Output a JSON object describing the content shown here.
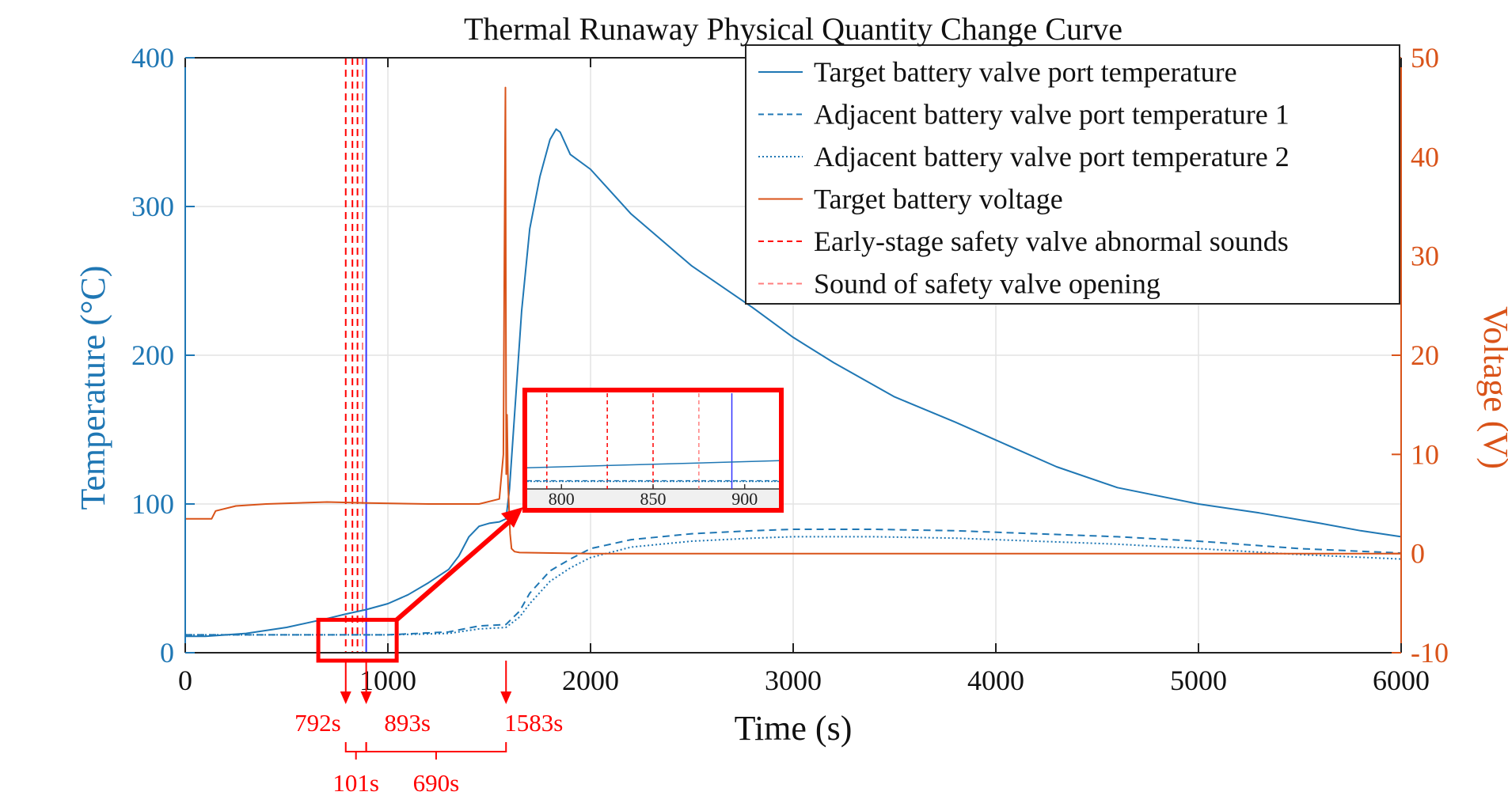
{
  "chart_data": {
    "type": "line",
    "title": "Thermal Runaway Physical Quantity Change Curve",
    "xlabel": "Time (s)",
    "ylabel_left": "Temperature (°C)",
    "ylabel_right": "Voltage (V)",
    "xlim": [
      0,
      6000
    ],
    "ylim_left": [
      0,
      400
    ],
    "ylim_right": [
      -10,
      50
    ],
    "x_ticks": [
      "0",
      "1000",
      "2000",
      "3000",
      "4000",
      "5000",
      "6000"
    ],
    "y_left_ticks": [
      "0",
      "100",
      "200",
      "300",
      "400"
    ],
    "y_right_ticks": [
      "-10",
      "0",
      "10",
      "20",
      "30",
      "40",
      "50"
    ],
    "grid": true,
    "legend_position": "top-right",
    "colors": {
      "temperature": "#1f77b4",
      "voltage": "#d95319",
      "early_sound": "#ff0000",
      "valve_open": "#ff7f7f",
      "marker_blue": "#3333ff",
      "annotation": "#ff0000"
    },
    "series": [
      {
        "name": "Target battery valve port temperature",
        "axis": "left",
        "style": "solid",
        "x": [
          0,
          100,
          300,
          500,
          700,
          792,
          893,
          1000,
          1100,
          1200,
          1300,
          1350,
          1400,
          1450,
          1500,
          1550,
          1583,
          1600,
          1630,
          1660,
          1700,
          1750,
          1800,
          1830,
          1850,
          1900,
          2000,
          2200,
          2500,
          2800,
          3000,
          3200,
          3500,
          3800,
          4000,
          4300,
          4600,
          5000,
          5300,
          5600,
          5800,
          6000
        ],
        "y": [
          11,
          11,
          13,
          17,
          23,
          26,
          29,
          33,
          39,
          47,
          56,
          65,
          78,
          85,
          87,
          88,
          90,
          110,
          170,
          230,
          285,
          320,
          345,
          352,
          350,
          335,
          325,
          295,
          260,
          232,
          212,
          195,
          172,
          155,
          143,
          125,
          111,
          100,
          94,
          87,
          82,
          78
        ]
      },
      {
        "name": "Adjacent battery valve port temperature 1",
        "axis": "left",
        "style": "dashed",
        "x": [
          0,
          500,
          1000,
          1300,
          1450,
          1583,
          1650,
          1700,
          1800,
          1900,
          2000,
          2200,
          2500,
          2800,
          3000,
          3400,
          3800,
          4200,
          4600,
          5000,
          5500,
          6000
        ],
        "y": [
          12,
          12,
          12,
          14,
          18,
          19,
          28,
          40,
          55,
          63,
          70,
          76,
          80,
          82,
          83,
          83,
          82,
          80,
          78,
          75,
          70,
          67
        ]
      },
      {
        "name": "Adjacent battery valve port temperature 2",
        "axis": "left",
        "style": "dotted",
        "x": [
          0,
          500,
          1000,
          1300,
          1450,
          1583,
          1650,
          1700,
          1800,
          1900,
          2000,
          2200,
          2500,
          2800,
          3000,
          3400,
          3800,
          4200,
          4600,
          5000,
          5500,
          6000
        ],
        "y": [
          12,
          12,
          12,
          13,
          16,
          17,
          24,
          33,
          48,
          57,
          64,
          71,
          75,
          77,
          78,
          78,
          77,
          75,
          73,
          70,
          66,
          63
        ]
      },
      {
        "name": "Target battery voltage",
        "axis": "right",
        "style": "solid",
        "x": [
          0,
          130,
          150,
          250,
          400,
          700,
          900,
          1200,
          1450,
          1550,
          1570,
          1575,
          1580,
          1584,
          1588,
          1593,
          1598,
          1603,
          1610,
          1625,
          1650,
          2000,
          3000,
          4000,
          5000,
          5500,
          6000
        ],
        "y": [
          3.5,
          3.5,
          4.3,
          4.8,
          5.0,
          5.2,
          5.1,
          5.0,
          5.0,
          5.5,
          10,
          30,
          47,
          8,
          14,
          7,
          4.5,
          2,
          0.5,
          0.2,
          0.1,
          0,
          0,
          0,
          0,
          0,
          0
        ]
      }
    ],
    "event_lines": [
      {
        "name": "Early-stage safety valve abnormal sounds",
        "x": [
          792,
          825,
          850
        ],
        "color": "#ff0000",
        "style": "dashed"
      },
      {
        "name": "Sound of safety valve opening",
        "x": [
          875
        ],
        "color": "#ff7f7f",
        "style": "dashed"
      },
      {
        "name": "",
        "x": [
          893
        ],
        "color": "#3333ff",
        "style": "solid"
      }
    ],
    "legend": [
      "Target battery valve port temperature",
      "Adjacent battery valve port temperature 1",
      "Adjacent battery valve port temperature 2",
      "Target battery voltage",
      "Early-stage safety valve abnormal sounds",
      "Sound of safety valve opening"
    ],
    "inset": {
      "xlim": [
        780,
        920
      ],
      "x_ticks": [
        "800",
        "850",
        "900"
      ],
      "ylim": [
        0,
        40
      ],
      "zoom_region_x": [
        680,
        1020
      ],
      "zoom_region_y": [
        0,
        20
      ]
    },
    "annotations": {
      "event_times": [
        {
          "label": "792s",
          "x": 792
        },
        {
          "label": "893s",
          "x": 893
        },
        {
          "label": "1583s",
          "x": 1583
        }
      ],
      "intervals": [
        {
          "label": "101s",
          "from": 792,
          "to": 893
        },
        {
          "label": "690s",
          "from": 893,
          "to": 1583
        }
      ]
    }
  }
}
